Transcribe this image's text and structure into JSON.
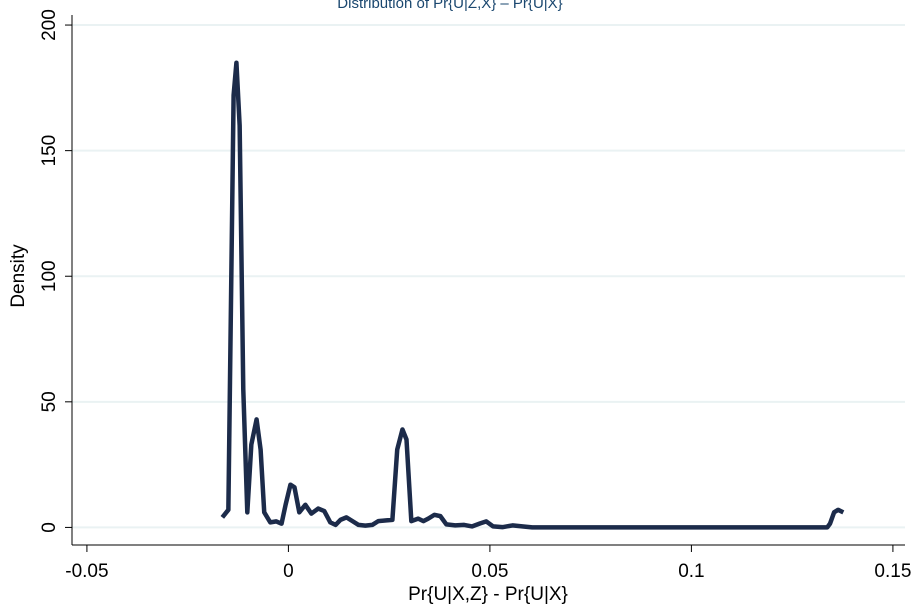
{
  "chart_data": {
    "type": "line",
    "title": "Distribution of Pr{U|Z,X} – Pr{U|X}",
    "x_label": "Pr{U|X,Z} - Pr{U|X}",
    "y_label": "Density",
    "x": [
      -0.0164,
      -0.0149,
      -0.0136,
      -0.0129,
      -0.0121,
      -0.0112,
      -0.0102,
      -0.0092,
      -0.0079,
      -0.0069,
      -0.006,
      -0.0045,
      -0.003,
      -0.0017,
      -0.0007,
      0.0005,
      0.0015,
      0.0027,
      0.0042,
      0.0057,
      0.0074,
      0.0089,
      0.0104,
      0.0117,
      0.0129,
      0.0144,
      0.0159,
      0.0174,
      0.0191,
      0.0208,
      0.0223,
      0.0243,
      0.0258,
      0.027,
      0.0283,
      0.0293,
      0.0305,
      0.0322,
      0.0335,
      0.0347,
      0.0362,
      0.0377,
      0.0392,
      0.0414,
      0.0436,
      0.0456,
      0.0476,
      0.0491,
      0.0508,
      0.0531,
      0.0556,
      0.058,
      0.0605,
      0.065,
      0.077,
      0.102,
      0.1337,
      0.1344,
      0.1354,
      0.1364,
      0.1377
    ],
    "series": [
      {
        "color": "#1c2b4a",
        "values": [
          4,
          7,
          172,
          185,
          160,
          55,
          6,
          33,
          43,
          31,
          6,
          2,
          2.4,
          1.5,
          9,
          17,
          16,
          6,
          9,
          5.5,
          7.5,
          6.5,
          2,
          1,
          3,
          4,
          2.5,
          1,
          0.7,
          1,
          2.5,
          2.8,
          3,
          31,
          39,
          35,
          2.5,
          3.5,
          2.5,
          3.5,
          5,
          4.5,
          1.2,
          0.8,
          1,
          0.4,
          1.6,
          2.4,
          0.4,
          0.1,
          0.8,
          0.4,
          0,
          0,
          0,
          0,
          0,
          1.5,
          6,
          7,
          6
        ]
      }
    ],
    "xlim": [
      -0.0537,
      0.153
    ],
    "ylim": [
      -7,
      204
    ],
    "xticks": [
      -0.05,
      0,
      0.05,
      0.1,
      0.15
    ],
    "yticks": [
      0,
      50,
      100,
      150,
      200
    ],
    "grid": true
  }
}
